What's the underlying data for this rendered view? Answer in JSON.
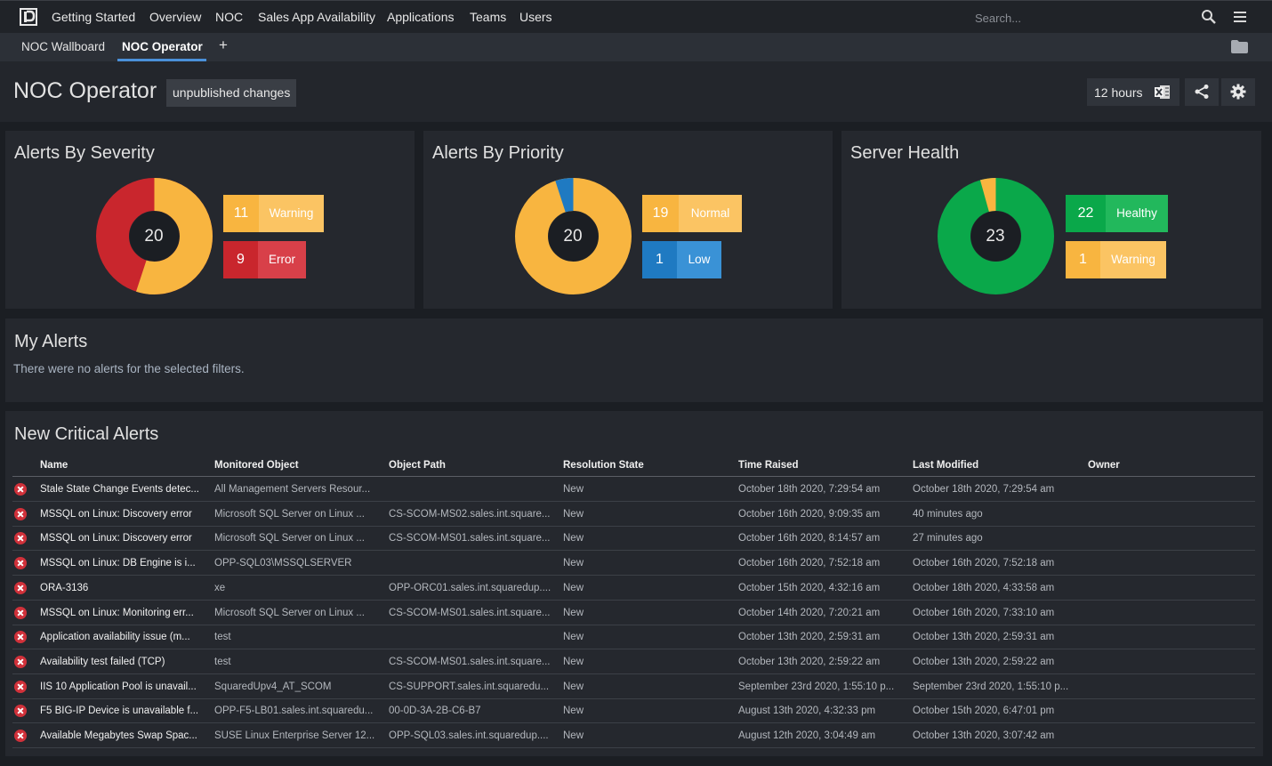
{
  "nav": {
    "items": [
      "Getting Started",
      "Overview",
      "NOC",
      "Sales App Availability",
      "Applications",
      "Teams",
      "Users"
    ],
    "search_placeholder": "Search..."
  },
  "tabs": {
    "items": [
      "NOC Wallboard",
      "NOC Operator"
    ],
    "active": "NOC Operator",
    "add_label": "+"
  },
  "page": {
    "title": "NOC Operator",
    "badge": "unpublished changes",
    "time_range": "12 hours"
  },
  "colors": {
    "warning": "#f8b540",
    "error": "#c9262d",
    "low": "#1f7ac2",
    "healthy": "#0aa84a",
    "accent": "#4a90d9"
  },
  "panels": {
    "severity": {
      "title": "Alerts By Severity",
      "total": "20",
      "legend": [
        {
          "count": "11",
          "label": "Warning"
        },
        {
          "count": "9",
          "label": "Error"
        }
      ]
    },
    "priority": {
      "title": "Alerts By Priority",
      "total": "20",
      "legend": [
        {
          "count": "19",
          "label": "Normal"
        },
        {
          "count": "1",
          "label": "Low"
        }
      ]
    },
    "health": {
      "title": "Server Health",
      "total": "23",
      "legend": [
        {
          "count": "22",
          "label": "Healthy"
        },
        {
          "count": "1",
          "label": "Warning"
        }
      ]
    }
  },
  "my_alerts": {
    "title": "My Alerts",
    "message": "There were no alerts for the selected filters."
  },
  "critical": {
    "title": "New Critical Alerts",
    "columns": [
      "Name",
      "Monitored Object",
      "Object Path",
      "Resolution State",
      "Time Raised",
      "Last Modified",
      "Owner"
    ],
    "rows": [
      [
        "Stale State Change Events detec...",
        "All Management Servers Resour...",
        "",
        "New",
        "October 18th 2020, 7:29:54 am",
        "October 18th 2020, 7:29:54 am"
      ],
      [
        "MSSQL on Linux: Discovery error",
        "Microsoft SQL Server on Linux ...",
        "CS-SCOM-MS02.sales.int.square...",
        "New",
        "October 16th 2020, 9:09:35 am",
        "40 minutes ago"
      ],
      [
        "MSSQL on Linux: Discovery error",
        "Microsoft SQL Server on Linux ...",
        "CS-SCOM-MS01.sales.int.square...",
        "New",
        "October 16th 2020, 8:14:57 am",
        "27 minutes ago"
      ],
      [
        "MSSQL on Linux: DB Engine is i...",
        "OPP-SQL03\\MSSQLSERVER",
        "",
        "New",
        "October 16th 2020, 7:52:18 am",
        "October 16th 2020, 7:52:18 am"
      ],
      [
        "ORA-3136",
        "xe",
        "OPP-ORC01.sales.int.squaredup....",
        "New",
        "October 15th 2020, 4:32:16 am",
        "October 18th 2020, 4:33:58 am"
      ],
      [
        "MSSQL on Linux: Monitoring err...",
        "Microsoft SQL Server on Linux ...",
        "CS-SCOM-MS01.sales.int.square...",
        "New",
        "October 14th 2020, 7:20:21 am",
        "October 16th 2020, 7:33:10 am"
      ],
      [
        "Application availability issue (m...",
        "test",
        "",
        "New",
        "October 13th 2020, 2:59:31 am",
        "October 13th 2020, 2:59:31 am"
      ],
      [
        "Availability test failed (TCP)",
        "test",
        "CS-SCOM-MS01.sales.int.square...",
        "New",
        "October 13th 2020, 2:59:22 am",
        "October 13th 2020, 2:59:22 am"
      ],
      [
        "IIS 10 Application Pool is unavail...",
        "SquaredUpv4_AT_SCOM",
        "CS-SUPPORT.sales.int.squaredu...",
        "New",
        "September 23rd 2020, 1:55:10 p...",
        "September 23rd 2020, 1:55:10 p..."
      ],
      [
        "F5 BIG-IP Device is unavailable f...",
        "OPP-F5-LB01.sales.int.squaredu...",
        "00-0D-3A-2B-C6-B7",
        "New",
        "August 13th 2020, 4:32:33 pm",
        "October 15th 2020, 6:47:01 pm"
      ],
      [
        "Available Megabytes Swap Spac...",
        "SUSE Linux Enterprise Server 12...",
        "OPP-SQL03.sales.int.squaredup....",
        "New",
        "August 12th 2020, 3:04:49 am",
        "October 13th 2020, 3:07:42 am"
      ]
    ]
  }
}
